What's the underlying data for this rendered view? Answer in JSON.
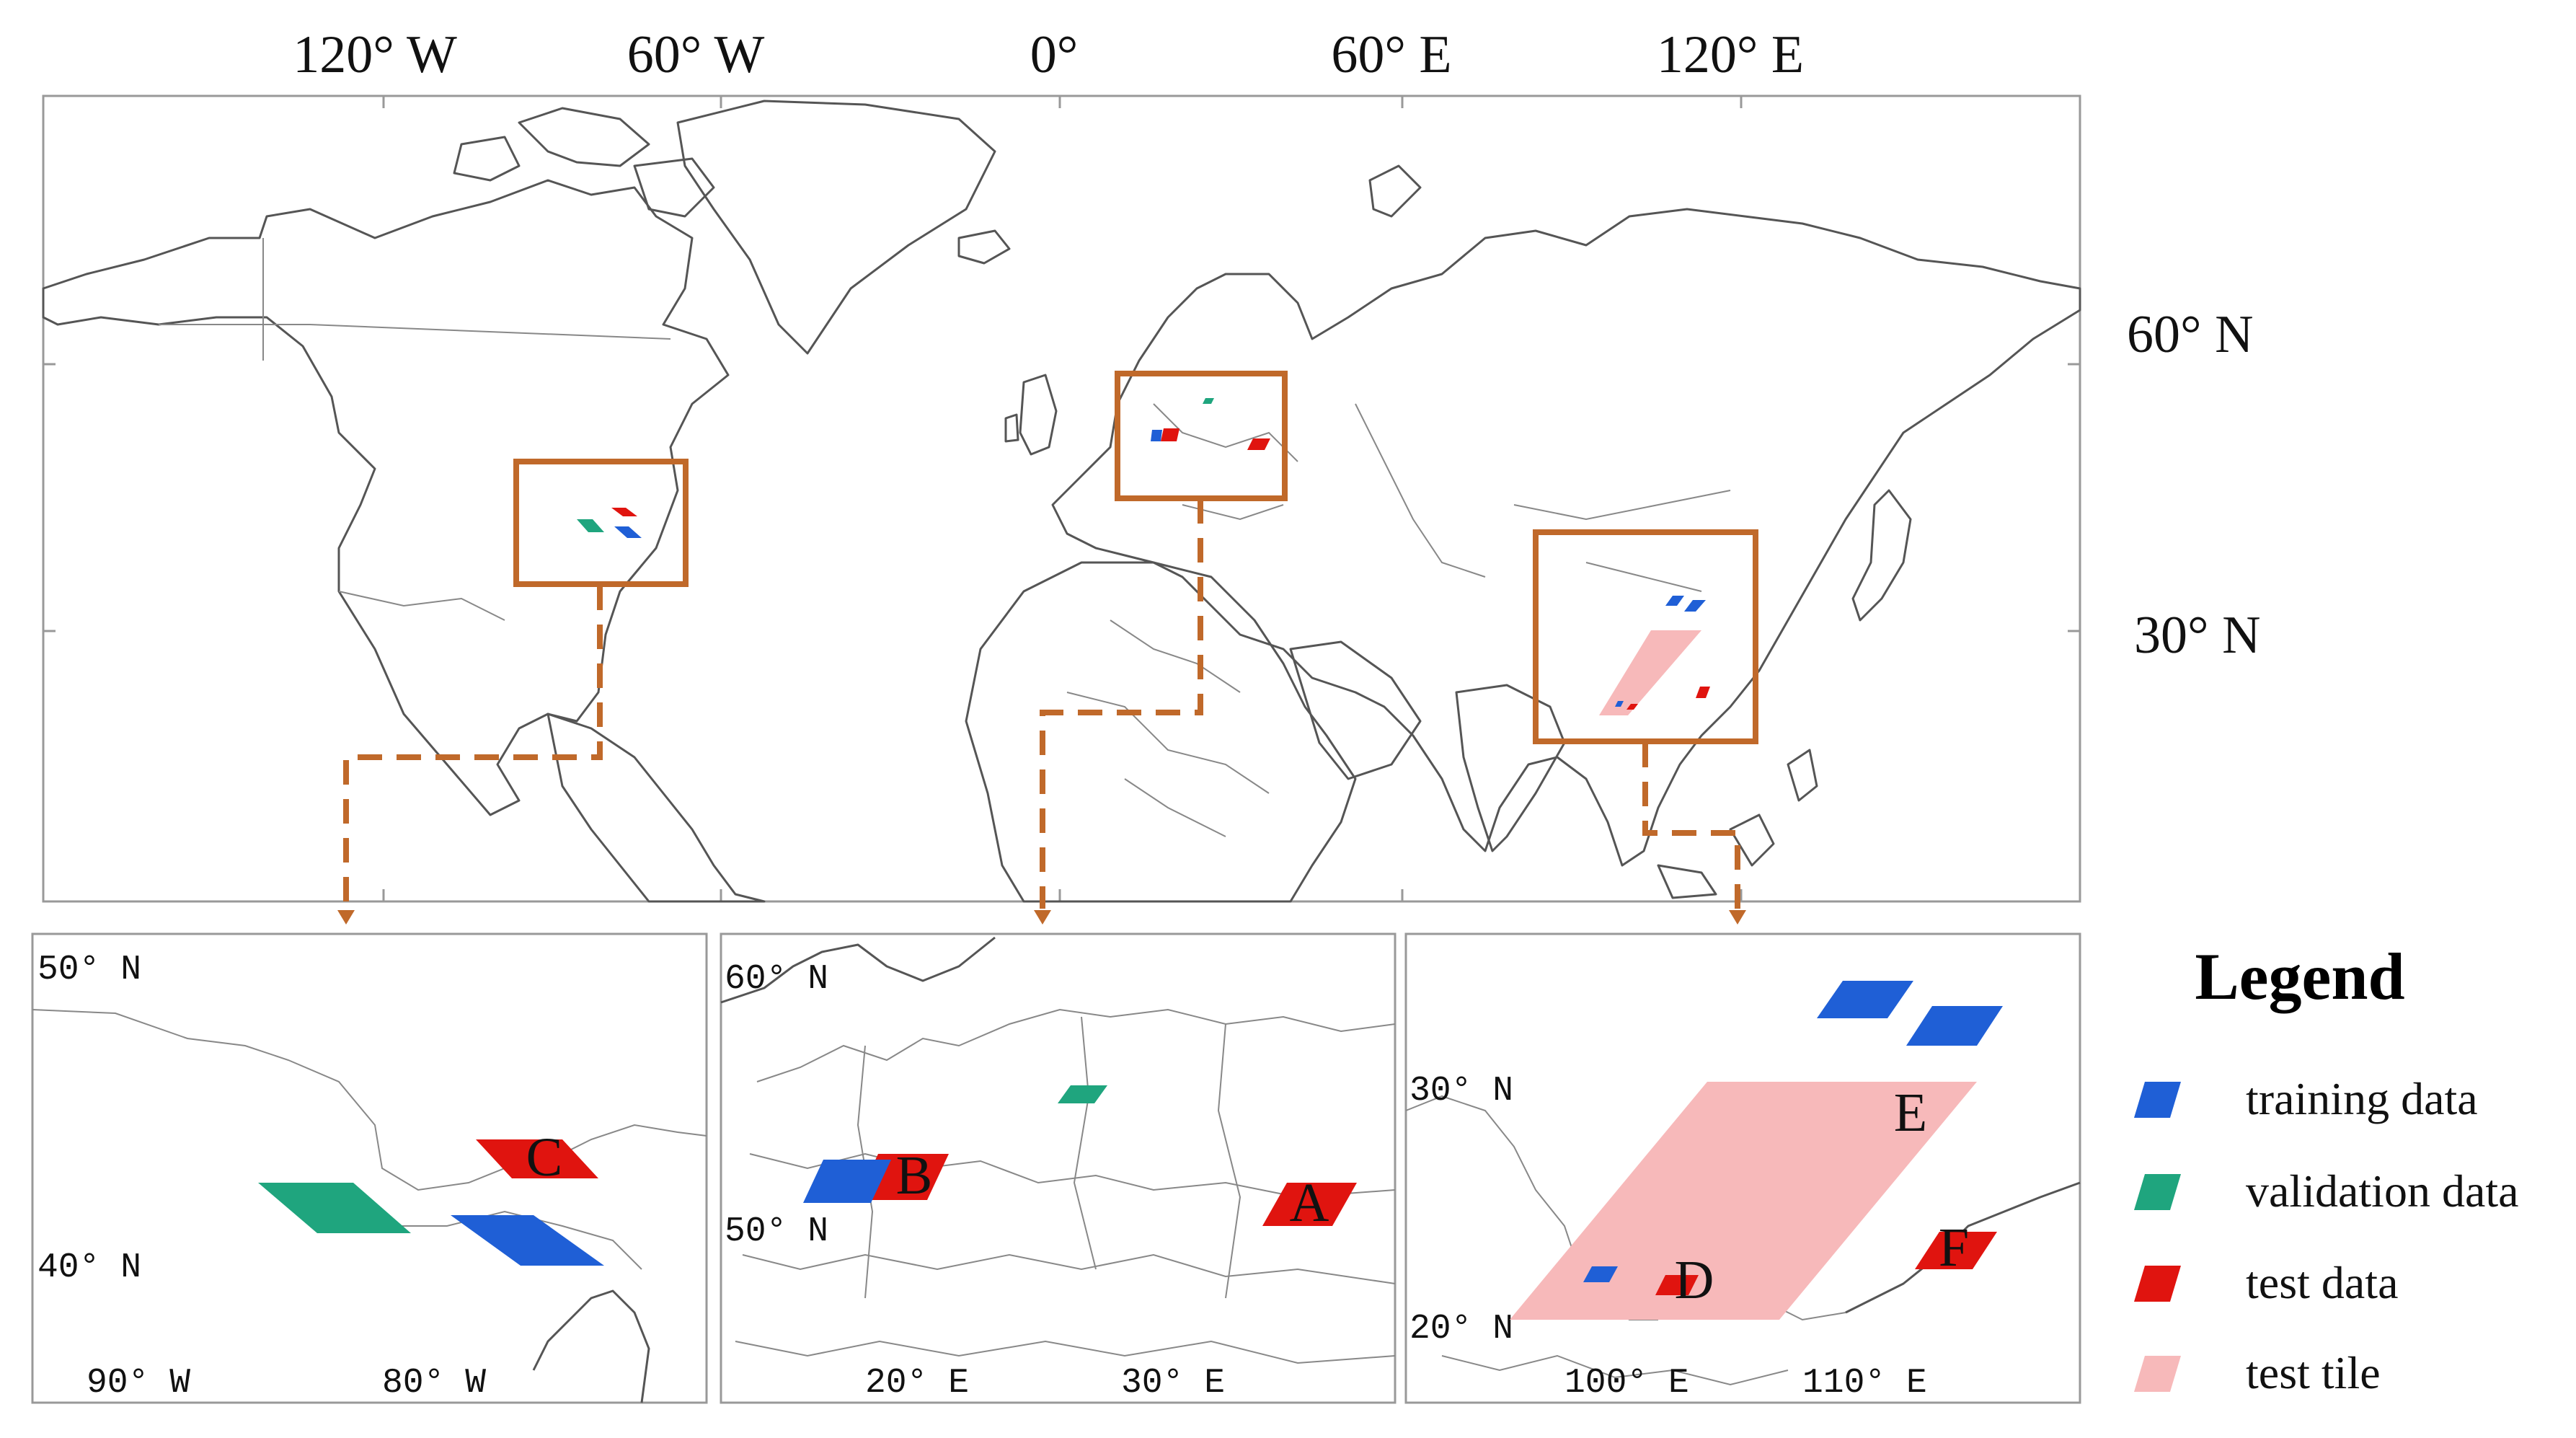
{
  "main_map": {
    "lon_ticks": [
      "120° W",
      "60° W",
      "0°",
      "60° E",
      "120° E"
    ],
    "lat_ticks": [
      "60° N",
      "30° N"
    ]
  },
  "inset_us": {
    "lat_ticks": [
      "50° N",
      "40° N"
    ],
    "lon_ticks": [
      "90° W",
      "80° W"
    ],
    "site_labels": [
      "C"
    ]
  },
  "inset_eu": {
    "lat_ticks": [
      "60° N",
      "50° N"
    ],
    "lon_ticks": [
      "20° E",
      "30° E"
    ],
    "site_labels": [
      "B",
      "A"
    ]
  },
  "inset_cn": {
    "lat_ticks": [
      "30° N",
      "20° N"
    ],
    "lon_ticks": [
      "100° E",
      "110° E"
    ],
    "site_labels": [
      "E",
      "D",
      "F"
    ]
  },
  "legend": {
    "title": "Legend",
    "items": [
      {
        "label": "training data",
        "color": "#1f5fd6"
      },
      {
        "label": "validation data",
        "color": "#1fa57e"
      },
      {
        "label": "test data",
        "color": "#e0140f"
      },
      {
        "label": "test tile",
        "color": "#f7b9ba"
      }
    ]
  },
  "colors": {
    "training": "#1f5fd6",
    "validation": "#1fa57e",
    "test": "#e0140f",
    "test_tile": "#f7b9ba",
    "highlight_box": "#c0692a"
  }
}
